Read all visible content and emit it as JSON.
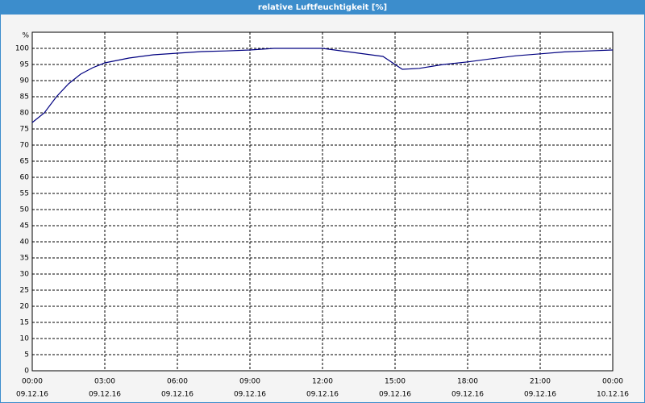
{
  "chart_data": {
    "type": "line",
    "title": "relative Luftfeuchtigkeit [%]",
    "y_label": "%",
    "x": [
      0,
      0.5,
      1,
      1.5,
      2,
      2.5,
      3,
      4,
      5,
      6,
      7,
      8,
      9,
      10,
      11,
      12,
      13,
      14,
      14.5,
      15,
      15.3,
      16,
      17,
      18,
      19,
      20,
      21,
      22,
      23,
      24
    ],
    "series": [
      {
        "name": "relative Luftfeuchtigkeit",
        "color": "#000080",
        "values": [
          77,
          80,
          85,
          89,
          92,
          94,
          95.5,
          97,
          98,
          98.5,
          99,
          99.2,
          99.5,
          100,
          100,
          100,
          99,
          98,
          97.5,
          95,
          93.5,
          93.8,
          95,
          95.8,
          96.8,
          97.7,
          98.3,
          98.9,
          99.2,
          99.5
        ]
      }
    ],
    "xlim": [
      0,
      24
    ],
    "xticks": [
      {
        "value": 0,
        "label": "00:00"
      },
      {
        "value": 3,
        "label": "03:00"
      },
      {
        "value": 6,
        "label": "06:00"
      },
      {
        "value": 9,
        "label": "09:00"
      },
      {
        "value": 12,
        "label": "12:00"
      },
      {
        "value": 15,
        "label": "15:00"
      },
      {
        "value": 18,
        "label": "18:00"
      },
      {
        "value": 21,
        "label": "21:00"
      },
      {
        "value": 24,
        "label": "00:00"
      }
    ],
    "xtick_dates": [
      "09.12.16",
      "09.12.16",
      "09.12.16",
      "09.12.16",
      "09.12.16",
      "09.12.16",
      "09.12.16",
      "09.12.16",
      "10.12.16"
    ],
    "ylim": [
      0,
      105
    ],
    "yticks": [
      0,
      5,
      10,
      15,
      20,
      25,
      30,
      35,
      40,
      45,
      50,
      55,
      60,
      65,
      70,
      75,
      80,
      85,
      90,
      95,
      100
    ],
    "grid": true
  }
}
